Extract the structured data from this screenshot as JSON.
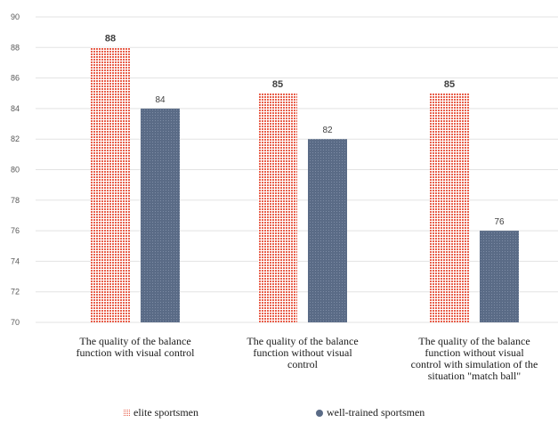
{
  "chart_data": {
    "type": "bar",
    "title": "",
    "xlabel": "",
    "ylabel": "",
    "ylim": [
      70,
      90
    ],
    "yticks": [
      70,
      72,
      74,
      76,
      78,
      80,
      82,
      84,
      86,
      88,
      90
    ],
    "grid": true,
    "legend_position": "bottom",
    "categories": [
      [
        "The quality of the balance",
        "function with visual control"
      ],
      [
        "The quality of the balance",
        "function without visual",
        "control"
      ],
      [
        "The quality of the balance",
        "function without visual",
        "control with simulation of the",
        "situation \"match ball\""
      ]
    ],
    "series": [
      {
        "name": "elite sportsmen",
        "values": [
          88,
          85,
          85
        ],
        "color": "#e8604c"
      },
      {
        "name": "well-trained sportsmen",
        "values": [
          84,
          82,
          76
        ],
        "color": "#5a6b86"
      }
    ],
    "data_labels": [
      [
        "88",
        "85",
        "85"
      ],
      [
        "84",
        "82",
        "76"
      ]
    ]
  }
}
